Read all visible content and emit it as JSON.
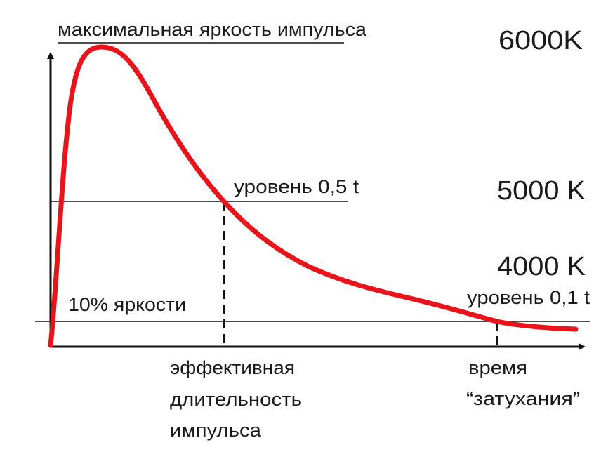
{
  "title": "",
  "annotations": {
    "peak_label": "максимальная яркость импульса",
    "half_level_label": "уровень 0,5 t",
    "tenth_level_label": "уровень 0,1 t",
    "ten_percent_label": "10% яркости",
    "effective_duration_lines": [
      "эффективная",
      "длительность",
      "импульса"
    ],
    "decay_time_lines": [
      "время",
      "“затухания”"
    ]
  },
  "temperature_labels": [
    "6000K",
    "5000 K",
    "4000 K"
  ],
  "colors": {
    "curve": "#e8141b",
    "lines": "#111111",
    "text": "#1a1a1a"
  }
}
